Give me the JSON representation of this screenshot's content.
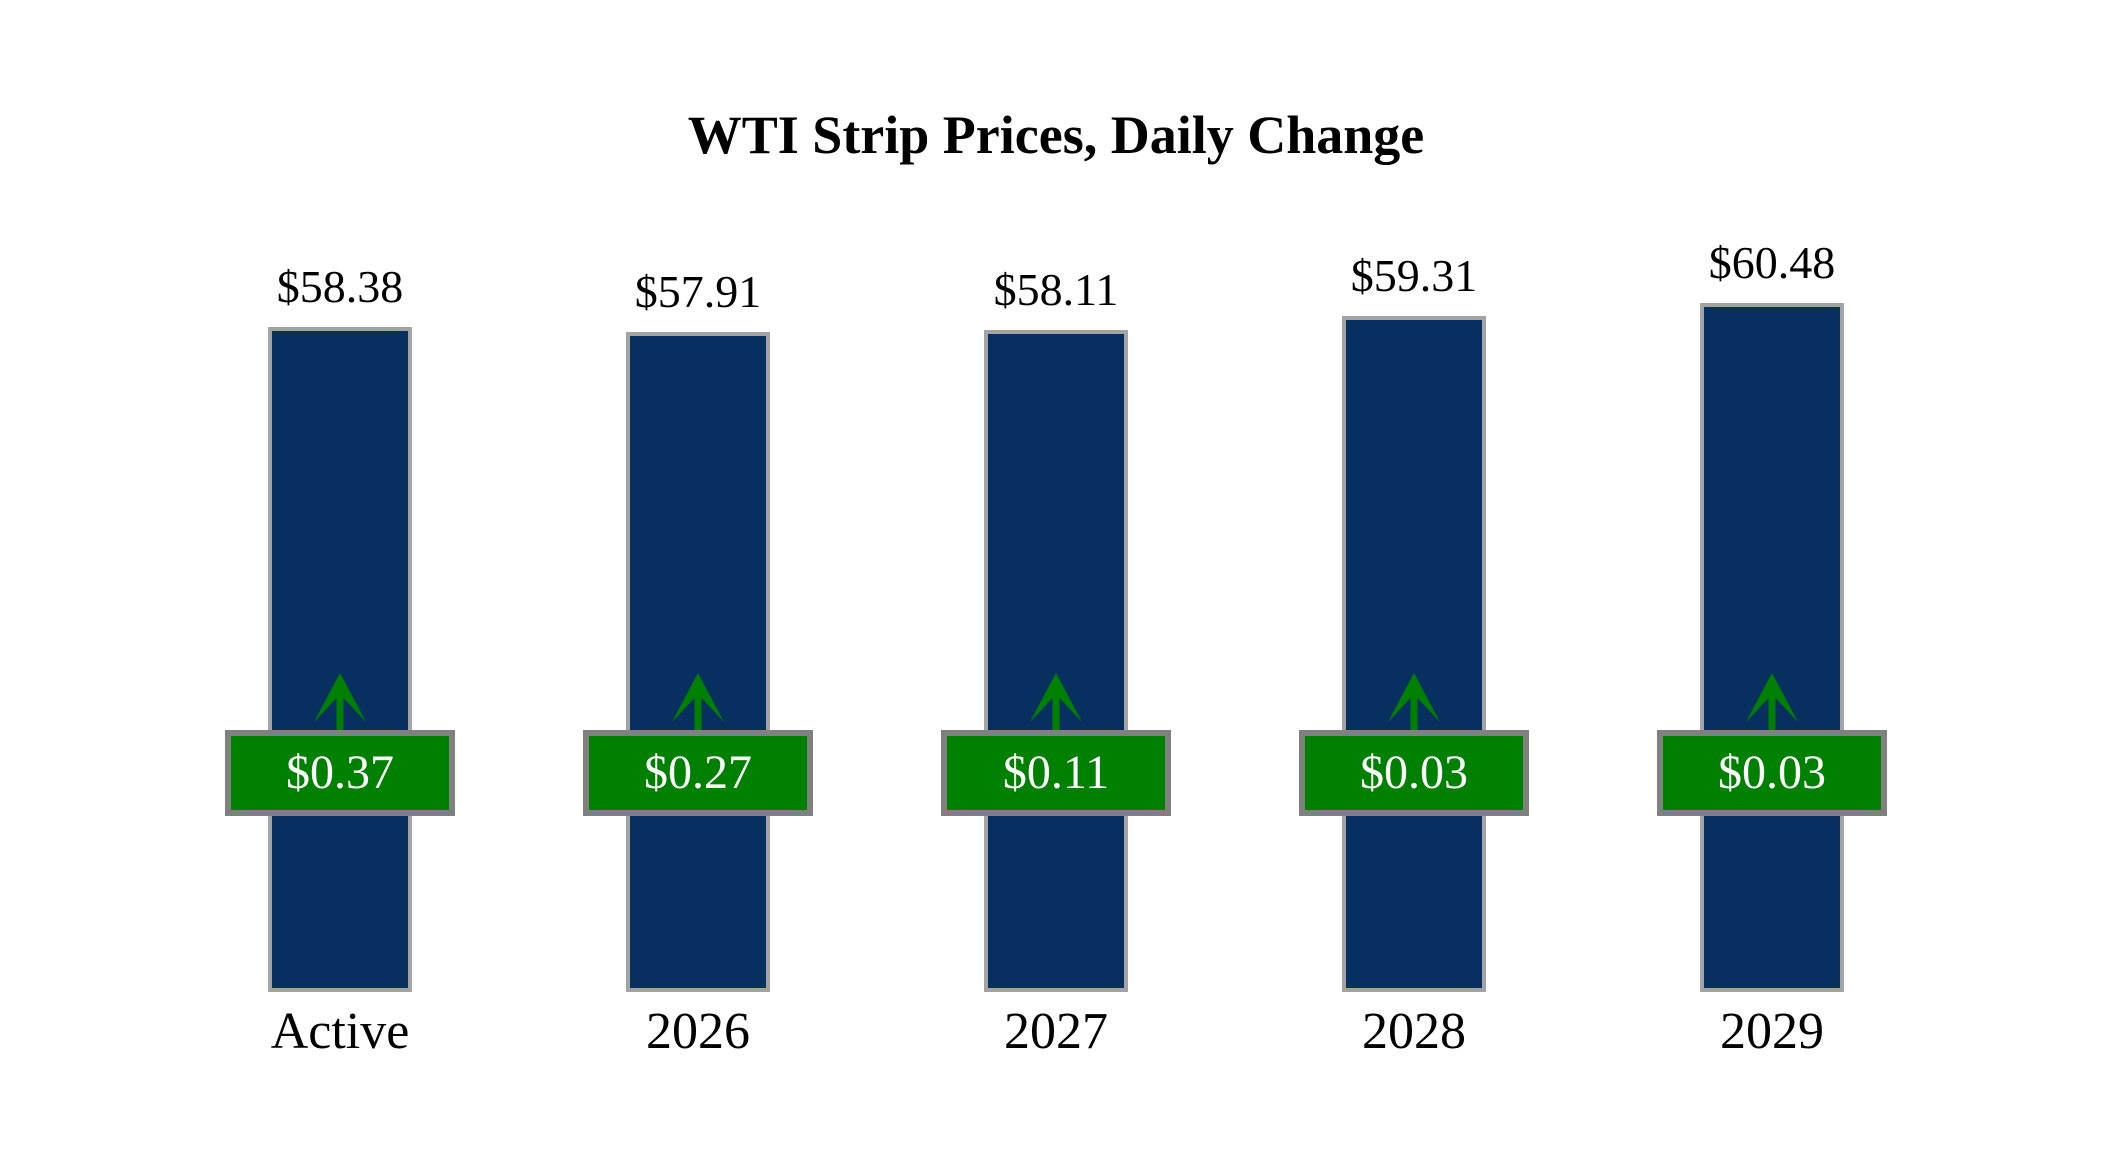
{
  "chart_data": {
    "type": "bar",
    "title": "WTI Strip Prices, Daily Change",
    "categories": [
      "Active",
      "2026",
      "2027",
      "2028",
      "2029"
    ],
    "series": [
      {
        "name": "strip-price",
        "values": [
          58.38,
          57.91,
          58.11,
          59.31,
          60.48
        ],
        "labels": [
          "$58.38",
          "$57.91",
          "$58.11",
          "$59.31",
          "$60.48"
        ]
      },
      {
        "name": "daily-change",
        "values": [
          0.37,
          0.27,
          0.11,
          0.03,
          0.03
        ],
        "labels": [
          "$0.37",
          "$0.27",
          "$0.11",
          "$0.03",
          "$0.03"
        ],
        "direction": "up"
      }
    ],
    "ylim": [
      0,
      65
    ],
    "axes_visible": false,
    "grid": false,
    "legend": "none",
    "colors": {
      "bar_fill": "#072F5F",
      "bar_border": "#A3A3A3",
      "change_box_fill": "#008000",
      "change_box_border": "#808080",
      "arrow": "#008000",
      "price_text": "#000000",
      "change_text": "#FFFFFF",
      "category_text": "#000000",
      "background": "#FFFFFF"
    }
  }
}
